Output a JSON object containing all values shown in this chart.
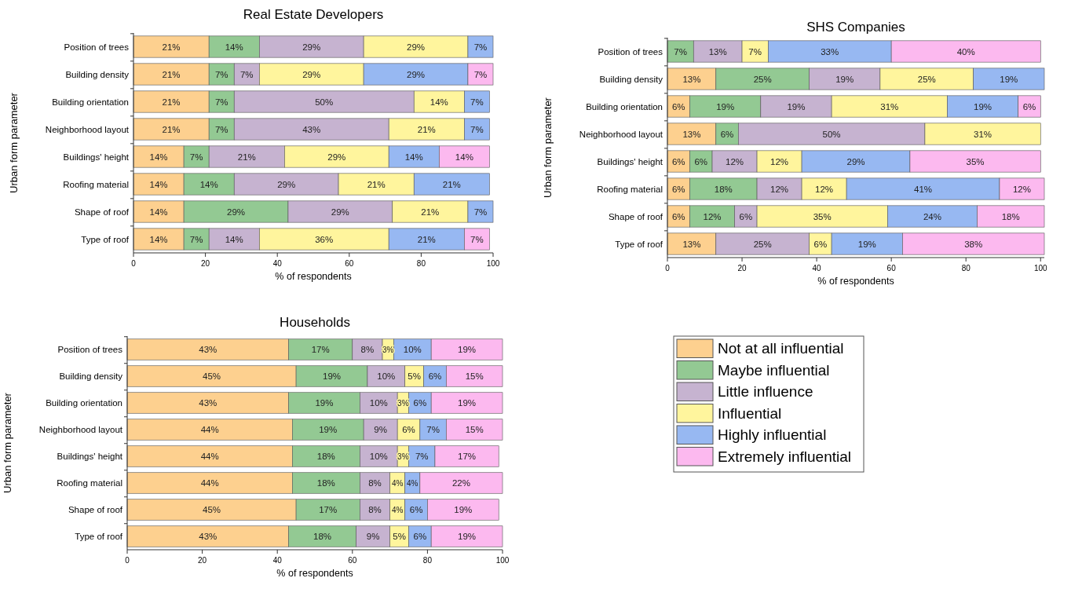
{
  "chart_data": [
    {
      "type": "bar",
      "orientation": "horizontal",
      "stacked": true,
      "title": "Real Estate Developers",
      "xlabel": "% of respondents",
      "ylabel": "Urban form parameter",
      "categories": [
        "Position of trees",
        "Building density",
        "Building orientation",
        "Neighborhood layout",
        "Buildings' height",
        "Roofing material",
        "Shape of roof",
        "Type of roof"
      ],
      "xlim": [
        0,
        100
      ],
      "xticks": [
        0,
        20,
        40,
        60,
        80,
        100
      ],
      "legend": false,
      "series": [
        {
          "color": "#fdd08f",
          "values": [
            21,
            21,
            21,
            21,
            14,
            14,
            14,
            14
          ],
          "value_labels": [
            "21%",
            "21%",
            "21%",
            "21%",
            "14%",
            "14%",
            "14%",
            "14%"
          ]
        },
        {
          "color": "#93c993",
          "values": [
            14,
            7,
            7,
            7,
            7,
            14,
            29,
            7
          ],
          "value_labels": [
            "14%",
            "7%",
            "7%",
            "7%",
            "7%",
            "14%",
            "29%",
            "7%"
          ]
        },
        {
          "color": "#c6b3d0",
          "values": [
            29,
            7,
            50,
            43,
            21,
            29,
            29,
            14
          ],
          "value_labels": [
            "29%",
            "7%",
            "50%",
            "43%",
            "21%",
            "29%",
            "29%",
            "14%"
          ]
        },
        {
          "color": "#fff59d",
          "values": [
            29,
            29,
            14,
            21,
            29,
            21,
            21,
            36
          ],
          "value_labels": [
            "29%",
            "29%",
            "14%",
            "21%",
            "29%",
            "21%",
            "21%",
            "36%"
          ]
        },
        {
          "color": "#97b8f2",
          "values": [
            7,
            29,
            7,
            7,
            14,
            21,
            7,
            21
          ],
          "value_labels": [
            "7%",
            "29%",
            "7%",
            "7%",
            "14%",
            "21%",
            "7%",
            "21%"
          ]
        },
        {
          "color": "#fcb9ef",
          "values": [
            null,
            7,
            null,
            null,
            14,
            null,
            null,
            7
          ],
          "value_labels": [
            null,
            "7%",
            null,
            null,
            "14%",
            null,
            null,
            "7%"
          ]
        }
      ]
    },
    {
      "type": "bar",
      "orientation": "horizontal",
      "stacked": true,
      "title": "SHS Companies",
      "xlabel": "% of respondents",
      "ylabel": "Urban form parameter",
      "categories": [
        "Position of trees",
        "Building density",
        "Building orientation",
        "Neighborhood layout",
        "Buildings' height",
        "Roofing material",
        "Shape of roof",
        "Type of roof"
      ],
      "xlim": [
        0,
        101
      ],
      "xticks": [
        0,
        20,
        40,
        60,
        80,
        100
      ],
      "legend": false,
      "series": [
        {
          "color": "#fdd08f",
          "values": [
            null,
            13,
            6,
            13,
            6,
            6,
            6,
            13
          ],
          "value_labels": [
            null,
            "13%",
            "6%",
            "13%",
            "6%",
            "6%",
            "6%",
            "13%"
          ]
        },
        {
          "color": "#93c993",
          "values": [
            7,
            25,
            19,
            6,
            6,
            18,
            12,
            null
          ],
          "value_labels": [
            "7%",
            "25%",
            "19%",
            "6%",
            "6%",
            "18%",
            "12%",
            null
          ]
        },
        {
          "color": "#c6b3d0",
          "values": [
            13,
            19,
            19,
            50,
            12,
            12,
            6,
            25
          ],
          "value_labels": [
            "13%",
            "19%",
            "19%",
            "50%",
            "12%",
            "12%",
            "6%",
            "25%"
          ]
        },
        {
          "color": "#fff59d",
          "values": [
            7,
            25,
            31,
            31,
            12,
            12,
            35,
            6
          ],
          "value_labels": [
            "7%",
            "25%",
            "31%",
            "31%",
            "12%",
            "12%",
            "35%",
            "6%"
          ]
        },
        {
          "color": "#97b8f2",
          "values": [
            33,
            19,
            19,
            null,
            29,
            41,
            24,
            19
          ],
          "value_labels": [
            "33%",
            "19%",
            "19%",
            null,
            "29%",
            "41%",
            "24%",
            "19%"
          ]
        },
        {
          "color": "#fcb9ef",
          "values": [
            40,
            null,
            6,
            null,
            35,
            12,
            18,
            38
          ],
          "value_labels": [
            "40%",
            null,
            "6%",
            null,
            "35%",
            "12%",
            "18%",
            "38%"
          ]
        }
      ]
    },
    {
      "type": "bar",
      "orientation": "horizontal",
      "stacked": true,
      "title": "Households",
      "xlabel": "% of respondents",
      "ylabel": "Urban form parameter",
      "categories": [
        "Position of trees",
        "Building density",
        "Building orientation",
        "Neighborhood layout",
        "Buildings' height",
        "Roofing material",
        "Shape of roof",
        "Type of roof"
      ],
      "xlim": [
        0,
        100
      ],
      "xticks": [
        0,
        20,
        40,
        60,
        80,
        100
      ],
      "legend": "right",
      "series": [
        {
          "name": "Not at all influential",
          "color": "#fdd08f",
          "values": [
            43,
            45,
            43,
            44,
            44,
            44,
            45,
            43
          ],
          "value_labels": [
            "43%",
            "45%",
            "43%",
            "44%",
            "44%",
            "44%",
            "45%",
            "43%"
          ]
        },
        {
          "name": "Maybe influential",
          "color": "#93c993",
          "values": [
            17,
            19,
            19,
            19,
            18,
            18,
            17,
            18
          ],
          "value_labels": [
            "17%",
            "19%",
            "19%",
            "19%",
            "18%",
            "18%",
            "17%",
            "18%"
          ]
        },
        {
          "name": "Little influence",
          "color": "#c6b3d0",
          "values": [
            8,
            10,
            10,
            9,
            10,
            8,
            8,
            9
          ],
          "value_labels": [
            "8%",
            "10%",
            "10%",
            "9%",
            "10%",
            "8%",
            "8%",
            "9%"
          ]
        },
        {
          "name": "Influential",
          "color": "#fff59d",
          "values": [
            3,
            5,
            3,
            6,
            3,
            4,
            4,
            5
          ],
          "value_labels": [
            "3%",
            "5%",
            "3%",
            "6%",
            "3%",
            "4%",
            "4%",
            "5%"
          ]
        },
        {
          "name": "Highly influential",
          "color": "#97b8f2",
          "values": [
            10,
            6,
            6,
            7,
            7,
            4,
            6,
            6
          ],
          "value_labels": [
            "10%",
            "6%",
            "6%",
            "7%",
            "7%",
            "4%",
            "6%",
            "6%"
          ]
        },
        {
          "name": "Extremely influential",
          "color": "#fcb9ef",
          "values": [
            19,
            15,
            19,
            15,
            17,
            22,
            19,
            19
          ],
          "value_labels": [
            "19%",
            "15%",
            "19%",
            "15%",
            "17%",
            "22%",
            "19%",
            "19%"
          ]
        }
      ]
    }
  ]
}
